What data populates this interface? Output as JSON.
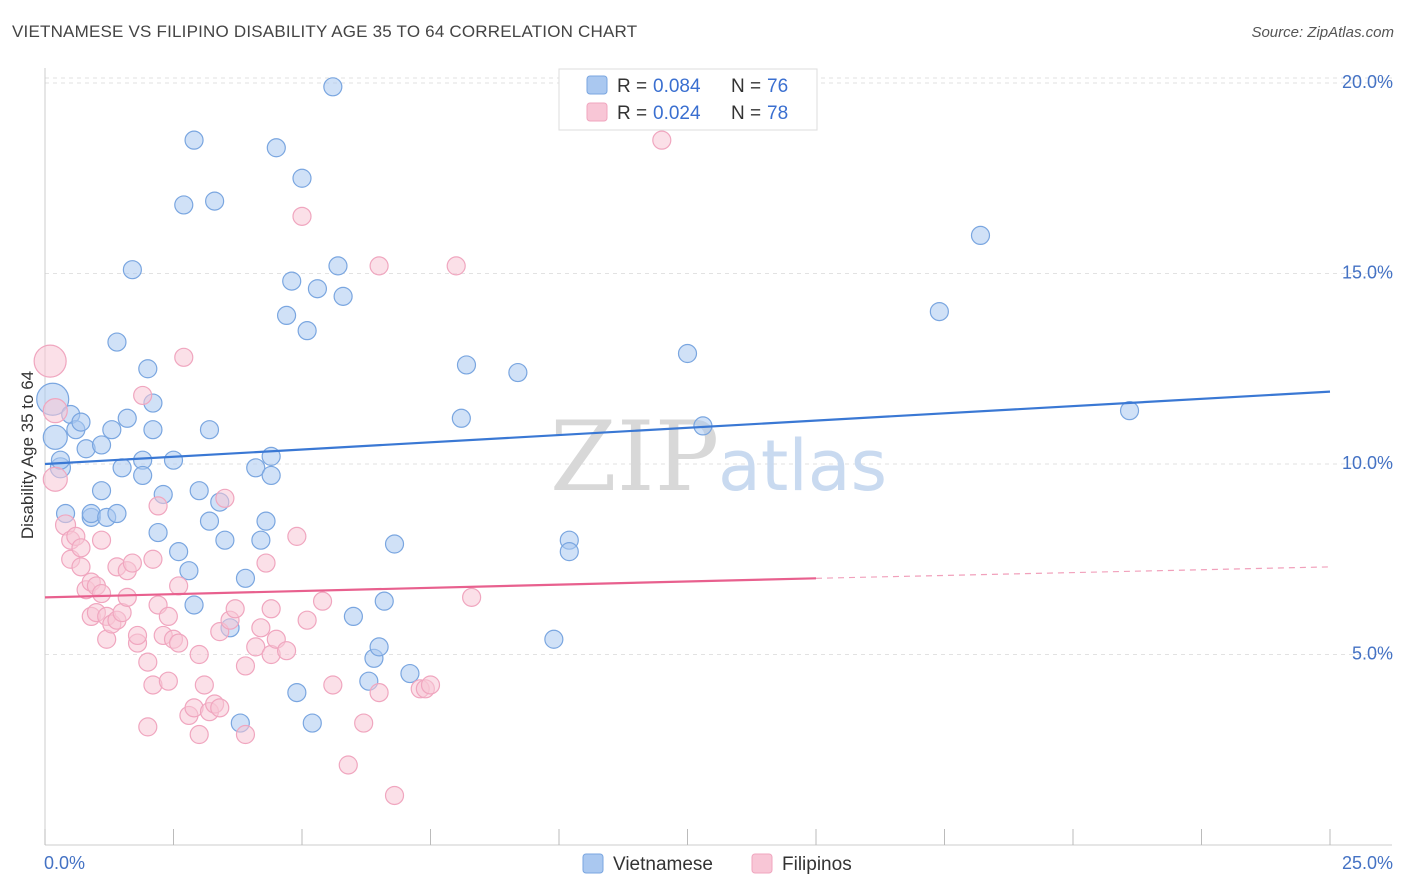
{
  "title": "VIETNAMESE VS FILIPINO DISABILITY AGE 35 TO 64 CORRELATION CHART",
  "source": "Source: ZipAtlas.com",
  "watermark": {
    "part1": "ZIP",
    "part2": "atlas"
  },
  "chart_data": {
    "type": "scatter",
    "title": "VIETNAMESE VS FILIPINO DISABILITY AGE 35 TO 64 CORRELATION CHART",
    "xlabel": "",
    "ylabel": "Disability Age 35 to 64",
    "xlim": [
      0,
      25
    ],
    "ylim": [
      0,
      20
    ],
    "x_ticks": [
      "0.0%",
      "25.0%"
    ],
    "y_ticks": [
      {
        "value": 5,
        "label": "5.0%"
      },
      {
        "value": 10,
        "label": "10.0%"
      },
      {
        "value": 15,
        "label": "15.0%"
      },
      {
        "value": 20,
        "label": "20.0%"
      }
    ],
    "grid": true,
    "legend": {
      "placement": "top-center",
      "rows": [
        {
          "r_label": "R = ",
          "r_value": "0.084",
          "n_label": "N = ",
          "n_value": "76"
        },
        {
          "r_label": "R = ",
          "r_value": "0.024",
          "n_label": "N = ",
          "n_value": "78"
        }
      ]
    },
    "series": [
      {
        "name": "Vietnamese",
        "color": "#7aa6e0",
        "fill": "#aac8f0",
        "line_color": "#3a78d4",
        "trend": {
          "x0": 0,
          "y0": 10.0,
          "x1": 25,
          "y1": 11.9
        },
        "points": [
          [
            0.15,
            11.7,
            16
          ],
          [
            0.2,
            10.7,
            12
          ],
          [
            0.3,
            9.9,
            10
          ],
          [
            0.3,
            10.1,
            9
          ],
          [
            0.5,
            11.3,
            9
          ],
          [
            0.6,
            10.9,
            9
          ],
          [
            0.7,
            11.1,
            9
          ],
          [
            0.8,
            10.4,
            9
          ],
          [
            1.1,
            10.5,
            9
          ],
          [
            0.4,
            8.7,
            9
          ],
          [
            0.9,
            8.6,
            9
          ],
          [
            0.9,
            8.7,
            9
          ],
          [
            1.2,
            8.6,
            9
          ],
          [
            1.4,
            8.7,
            9
          ],
          [
            1.1,
            9.3,
            9
          ],
          [
            1.3,
            10.9,
            9
          ],
          [
            1.5,
            9.9,
            9
          ],
          [
            1.6,
            11.2,
            9
          ],
          [
            1.4,
            13.2,
            9
          ],
          [
            1.7,
            15.1,
            9
          ],
          [
            1.9,
            10.1,
            9
          ],
          [
            1.9,
            9.7,
            9
          ],
          [
            2.0,
            12.5,
            9
          ],
          [
            2.1,
            11.6,
            9
          ],
          [
            2.1,
            10.9,
            9
          ],
          [
            2.2,
            8.2,
            9
          ],
          [
            2.3,
            9.2,
            9
          ],
          [
            2.5,
            10.1,
            9
          ],
          [
            2.6,
            7.7,
            9
          ],
          [
            2.7,
            16.8,
            9
          ],
          [
            2.8,
            7.2,
            9
          ],
          [
            2.9,
            18.5,
            9
          ],
          [
            2.9,
            6.3,
            9
          ],
          [
            3.0,
            9.3,
            9
          ],
          [
            3.2,
            8.5,
            9
          ],
          [
            3.2,
            10.9,
            9
          ],
          [
            3.3,
            16.9,
            9
          ],
          [
            3.4,
            9.0,
            9
          ],
          [
            3.5,
            8.0,
            9
          ],
          [
            3.6,
            5.7,
            9
          ],
          [
            3.8,
            3.2,
            9
          ],
          [
            3.9,
            7.0,
            9
          ],
          [
            4.1,
            9.9,
            9
          ],
          [
            4.2,
            8.0,
            9
          ],
          [
            4.3,
            8.5,
            9
          ],
          [
            4.4,
            9.7,
            9
          ],
          [
            4.4,
            10.2,
            9
          ],
          [
            4.5,
            18.3,
            9
          ],
          [
            4.7,
            13.9,
            9
          ],
          [
            4.8,
            14.8,
            9
          ],
          [
            4.9,
            4.0,
            9
          ],
          [
            5.0,
            17.5,
            9
          ],
          [
            5.1,
            13.5,
            9
          ],
          [
            5.2,
            3.2,
            9
          ],
          [
            5.3,
            14.6,
            9
          ],
          [
            5.6,
            19.9,
            9
          ],
          [
            5.7,
            15.2,
            9
          ],
          [
            5.8,
            14.4,
            9
          ],
          [
            6.0,
            6.0,
            9
          ],
          [
            6.3,
            4.3,
            9
          ],
          [
            6.4,
            4.9,
            9
          ],
          [
            6.5,
            5.2,
            9
          ],
          [
            6.6,
            6.4,
            9
          ],
          [
            6.8,
            7.9,
            9
          ],
          [
            7.1,
            4.5,
            9
          ],
          [
            8.1,
            11.2,
            9
          ],
          [
            8.2,
            12.6,
            9
          ],
          [
            9.2,
            12.4,
            9
          ],
          [
            9.9,
            5.4,
            9
          ],
          [
            10.2,
            8.0,
            9
          ],
          [
            10.2,
            7.7,
            9
          ],
          [
            12.5,
            12.9,
            9
          ],
          [
            12.8,
            11.0,
            9
          ],
          [
            17.4,
            14.0,
            9
          ],
          [
            18.2,
            16.0,
            9
          ],
          [
            21.1,
            11.4,
            9
          ]
        ]
      },
      {
        "name": "Filipinos",
        "color": "#f0a6bf",
        "fill": "#f8c6d6",
        "line_color": "#e8608e",
        "trend": {
          "x0": 0,
          "y0": 6.5,
          "x1": 15,
          "y1": 7.0
        },
        "trend_dashed": {
          "x0": 15,
          "y0": 7.0,
          "x1": 25,
          "y1": 7.3
        },
        "points": [
          [
            0.1,
            12.7,
            16
          ],
          [
            0.2,
            11.4,
            12
          ],
          [
            0.2,
            9.6,
            12
          ],
          [
            0.4,
            8.4,
            10
          ],
          [
            0.5,
            8.0,
            9
          ],
          [
            0.5,
            7.5,
            9
          ],
          [
            0.6,
            8.1,
            9
          ],
          [
            0.7,
            7.3,
            9
          ],
          [
            0.7,
            7.8,
            9
          ],
          [
            0.8,
            6.7,
            9
          ],
          [
            0.9,
            6.9,
            9
          ],
          [
            0.9,
            6.0,
            9
          ],
          [
            1.0,
            6.1,
            9
          ],
          [
            1.0,
            6.8,
            9
          ],
          [
            1.1,
            6.6,
            9
          ],
          [
            1.1,
            8.0,
            9
          ],
          [
            1.2,
            6.0,
            9
          ],
          [
            1.2,
            5.4,
            9
          ],
          [
            1.3,
            5.8,
            9
          ],
          [
            1.4,
            5.9,
            9
          ],
          [
            1.4,
            7.3,
            9
          ],
          [
            1.5,
            6.1,
            9
          ],
          [
            1.6,
            7.2,
            9
          ],
          [
            1.6,
            6.5,
            9
          ],
          [
            1.7,
            7.4,
            9
          ],
          [
            1.8,
            5.3,
            9
          ],
          [
            1.8,
            5.5,
            9
          ],
          [
            1.9,
            11.8,
            9
          ],
          [
            2.0,
            4.8,
            9
          ],
          [
            2.0,
            3.1,
            9
          ],
          [
            2.1,
            4.2,
            9
          ],
          [
            2.1,
            7.5,
            9
          ],
          [
            2.2,
            8.9,
            9
          ],
          [
            2.2,
            6.3,
            9
          ],
          [
            2.3,
            5.5,
            9
          ],
          [
            2.4,
            4.3,
            9
          ],
          [
            2.4,
            6.0,
            9
          ],
          [
            2.5,
            5.4,
            9
          ],
          [
            2.6,
            5.3,
            9
          ],
          [
            2.6,
            6.8,
            9
          ],
          [
            2.7,
            12.8,
            9
          ],
          [
            2.8,
            3.4,
            9
          ],
          [
            2.9,
            3.6,
            9
          ],
          [
            3.0,
            2.9,
            9
          ],
          [
            3.0,
            5.0,
            9
          ],
          [
            3.1,
            4.2,
            9
          ],
          [
            3.2,
            3.5,
            9
          ],
          [
            3.3,
            3.7,
            9
          ],
          [
            3.4,
            3.6,
            9
          ],
          [
            3.4,
            5.6,
            9
          ],
          [
            3.5,
            9.1,
            9
          ],
          [
            3.6,
            5.9,
            9
          ],
          [
            3.7,
            6.2,
            9
          ],
          [
            3.9,
            4.7,
            9
          ],
          [
            3.9,
            2.9,
            9
          ],
          [
            4.1,
            5.2,
            9
          ],
          [
            4.2,
            5.7,
            9
          ],
          [
            4.3,
            7.4,
            9
          ],
          [
            4.4,
            6.2,
            9
          ],
          [
            4.4,
            5.0,
            9
          ],
          [
            4.5,
            5.4,
            9
          ],
          [
            4.7,
            5.1,
            9
          ],
          [
            4.9,
            8.1,
            9
          ],
          [
            5.0,
            16.5,
            9
          ],
          [
            5.1,
            5.9,
            9
          ],
          [
            5.4,
            6.4,
            9
          ],
          [
            5.6,
            4.2,
            9
          ],
          [
            5.9,
            2.1,
            9
          ],
          [
            6.2,
            3.2,
            9
          ],
          [
            6.5,
            4.0,
            9
          ],
          [
            6.5,
            15.2,
            9
          ],
          [
            6.8,
            1.3,
            9
          ],
          [
            7.3,
            4.1,
            9
          ],
          [
            7.4,
            4.1,
            9
          ],
          [
            7.5,
            4.2,
            9
          ],
          [
            8.0,
            15.2,
            9
          ],
          [
            8.3,
            6.5,
            9
          ],
          [
            12.0,
            18.5,
            9
          ]
        ]
      }
    ]
  }
}
